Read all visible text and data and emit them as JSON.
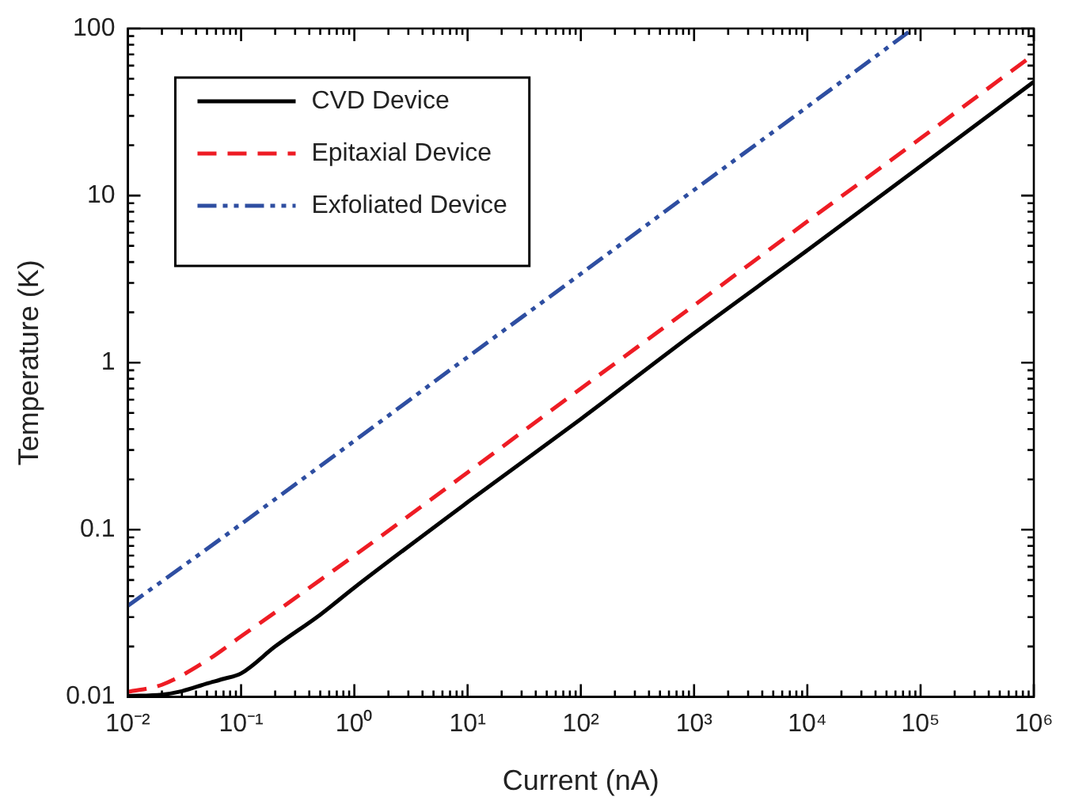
{
  "chart_data": {
    "type": "line",
    "xlabel": "Current (nA)",
    "ylabel": "Temperature (K)",
    "log": "xy",
    "grid": false,
    "legend": "top left",
    "marker": "none",
    "xlim": [
      0.01,
      1000000
    ],
    "ylim": [
      0.01,
      100
    ],
    "xticks": [
      {
        "value": 0.01,
        "label": "10⁻²"
      },
      {
        "value": 0.02,
        "label": null
      },
      {
        "value": 0.03,
        "label": null
      },
      {
        "value": 0.04,
        "label": null
      },
      {
        "value": 0.05,
        "label": null
      },
      {
        "value": 0.06,
        "label": null
      },
      {
        "value": 0.07,
        "label": null
      },
      {
        "value": 0.08,
        "label": null
      },
      {
        "value": 0.09,
        "label": null
      },
      {
        "value": 0.1,
        "label": "10⁻¹"
      },
      {
        "value": 0.2,
        "label": null
      },
      {
        "value": 0.3,
        "label": null
      },
      {
        "value": 0.4,
        "label": null
      },
      {
        "value": 0.5,
        "label": null
      },
      {
        "value": 0.6,
        "label": null
      },
      {
        "value": 0.7,
        "label": null
      },
      {
        "value": 0.8,
        "label": null
      },
      {
        "value": 0.9,
        "label": null
      },
      {
        "value": 1,
        "label": "10⁰"
      },
      {
        "value": 2,
        "label": null
      },
      {
        "value": 3,
        "label": null
      },
      {
        "value": 4,
        "label": null
      },
      {
        "value": 5,
        "label": null
      },
      {
        "value": 6,
        "label": null
      },
      {
        "value": 7,
        "label": null
      },
      {
        "value": 8,
        "label": null
      },
      {
        "value": 9,
        "label": null
      },
      {
        "value": 10,
        "label": "10¹"
      },
      {
        "value": 20,
        "label": null
      },
      {
        "value": 30,
        "label": null
      },
      {
        "value": 40,
        "label": null
      },
      {
        "value": 50,
        "label": null
      },
      {
        "value": 60,
        "label": null
      },
      {
        "value": 70,
        "label": null
      },
      {
        "value": 80,
        "label": null
      },
      {
        "value": 90,
        "label": null
      },
      {
        "value": 100,
        "label": "10²"
      },
      {
        "value": 200,
        "label": null
      },
      {
        "value": 300,
        "label": null
      },
      {
        "value": 400,
        "label": null
      },
      {
        "value": 500,
        "label": null
      },
      {
        "value": 600,
        "label": null
      },
      {
        "value": 700,
        "label": null
      },
      {
        "value": 800,
        "label": null
      },
      {
        "value": 900,
        "label": null
      },
      {
        "value": 1000,
        "label": "10³"
      },
      {
        "value": 2000,
        "label": null
      },
      {
        "value": 3000,
        "label": null
      },
      {
        "value": 4000,
        "label": null
      },
      {
        "value": 5000,
        "label": null
      },
      {
        "value": 6000,
        "label": null
      },
      {
        "value": 7000,
        "label": null
      },
      {
        "value": 8000,
        "label": null
      },
      {
        "value": 9000,
        "label": null
      },
      {
        "value": 10000,
        "label": "10⁴"
      },
      {
        "value": 20000,
        "label": null
      },
      {
        "value": 30000,
        "label": null
      },
      {
        "value": 40000,
        "label": null
      },
      {
        "value": 50000,
        "label": null
      },
      {
        "value": 60000,
        "label": null
      },
      {
        "value": 70000,
        "label": null
      },
      {
        "value": 80000,
        "label": null
      },
      {
        "value": 90000,
        "label": null
      },
      {
        "value": 100000,
        "label": "10⁵"
      },
      {
        "value": 200000,
        "label": null
      },
      {
        "value": 300000,
        "label": null
      },
      {
        "value": 400000,
        "label": null
      },
      {
        "value": 500000,
        "label": null
      },
      {
        "value": 600000,
        "label": null
      },
      {
        "value": 700000,
        "label": null
      },
      {
        "value": 800000,
        "label": null
      },
      {
        "value": 900000,
        "label": null
      },
      {
        "value": 1000000,
        "label": "10⁶"
      }
    ],
    "yticks": [
      0.01,
      {
        "value": 0.02,
        "label": null
      },
      {
        "value": 0.03,
        "label": null
      },
      {
        "value": 0.04,
        "label": null
      },
      {
        "value": 0.05,
        "label": null
      },
      {
        "value": 0.06,
        "label": null
      },
      {
        "value": 0.07,
        "label": null
      },
      {
        "value": 0.08,
        "label": null
      },
      {
        "value": 0.09,
        "label": null
      },
      0.1,
      {
        "value": 0.2,
        "label": null
      },
      {
        "value": 0.3,
        "label": null
      },
      {
        "value": 0.4,
        "label": null
      },
      {
        "value": 0.5,
        "label": null
      },
      {
        "value": 0.6,
        "label": null
      },
      {
        "value": 0.7,
        "label": null
      },
      {
        "value": 0.8,
        "label": null
      },
      {
        "value": 0.9,
        "label": null
      },
      1,
      {
        "value": 2,
        "label": null
      },
      {
        "value": 3,
        "label": null
      },
      {
        "value": 4,
        "label": null
      },
      {
        "value": 5,
        "label": null
      },
      {
        "value": 6,
        "label": null
      },
      {
        "value": 7,
        "label": null
      },
      {
        "value": 8,
        "label": null
      },
      {
        "value": 9,
        "label": null
      },
      10,
      {
        "value": 20,
        "label": null
      },
      {
        "value": 30,
        "label": null
      },
      {
        "value": 40,
        "label": null
      },
      {
        "value": 50,
        "label": null
      },
      {
        "value": 60,
        "label": null
      },
      {
        "value": 70,
        "label": null
      },
      {
        "value": 80,
        "label": null
      },
      {
        "value": 90,
        "label": null
      },
      100
    ],
    "series": [
      {
        "name": "CVD Device",
        "color": "#000000",
        "line_style": "solid",
        "x": [
          0.01,
          0.02,
          0.03,
          0.05,
          0.07,
          0.1,
          0.2,
          0.5,
          1,
          10,
          100,
          1000,
          10000,
          100000,
          1000000
        ],
        "values": [
          0.0101,
          0.0103,
          0.0108,
          0.012,
          0.0128,
          0.0138,
          0.02,
          0.031,
          0.045,
          0.146,
          0.46,
          1.5,
          4.7,
          15,
          48
        ]
      },
      {
        "name": "Epitaxial Device",
        "color": "#ee1c24",
        "line_style": "dashed",
        "x": [
          0.01,
          0.02,
          0.05,
          0.1,
          0.2,
          0.5,
          1,
          10,
          100,
          1000,
          10000,
          100000,
          1000000
        ],
        "values": [
          0.0107,
          0.0118,
          0.0165,
          0.023,
          0.032,
          0.05,
          0.07,
          0.22,
          0.7,
          2.2,
          7,
          22,
          70
        ]
      },
      {
        "name": "Exfoliated Device",
        "color": "#2e4ea1",
        "line_style": "dashdotdot",
        "x": [
          0.01,
          0.1,
          1,
          10,
          100,
          1000,
          10000,
          86500
        ],
        "values": [
          0.035,
          0.108,
          0.34,
          1.08,
          3.4,
          10.8,
          34,
          100
        ]
      }
    ]
  }
}
